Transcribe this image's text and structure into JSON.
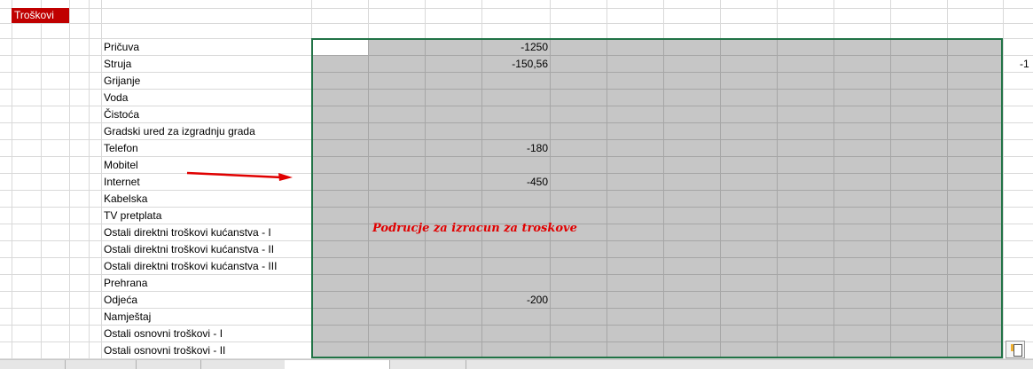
{
  "sheet_title": "Troškovi",
  "rows": [
    {
      "label": "Pričuva",
      "value": "-1250"
    },
    {
      "label": "Struja",
      "value": "-150,56"
    },
    {
      "label": "Grijanje",
      "value": ""
    },
    {
      "label": "Voda",
      "value": ""
    },
    {
      "label": "Čistoća",
      "value": ""
    },
    {
      "label": "Gradski ured za izgradnju grada",
      "value": ""
    },
    {
      "label": "Telefon",
      "value": "-180"
    },
    {
      "label": "Mobitel",
      "value": ""
    },
    {
      "label": "Internet",
      "value": "-450"
    },
    {
      "label": "Kabelska",
      "value": ""
    },
    {
      "label": "TV pretplata",
      "value": ""
    },
    {
      "label": "Ostali direktni troškovi kućanstva - I",
      "value": ""
    },
    {
      "label": "Ostali direktni troškovi kućanstva - II",
      "value": ""
    },
    {
      "label": "Ostali direktni troškovi kućanstva - III",
      "value": ""
    },
    {
      "label": "Prehrana",
      "value": ""
    },
    {
      "label": "Odjeća",
      "value": "-200"
    },
    {
      "label": "Namještaj",
      "value": ""
    },
    {
      "label": "Ostali osnovni troškovi - I",
      "value": ""
    },
    {
      "label": "Ostali osnovni troškovi - II",
      "value": ""
    }
  ],
  "clipped_value": "-1",
  "note": "Podrucje za izracun za troskove",
  "colors": {
    "title_bg": "#c00000",
    "selection_border": "#217346",
    "selection_fill": "#c6c6c6",
    "note": "#e00000"
  },
  "icons": {
    "arrow": "red-arrow-right",
    "quick_analysis": "quick-analysis-icon"
  }
}
